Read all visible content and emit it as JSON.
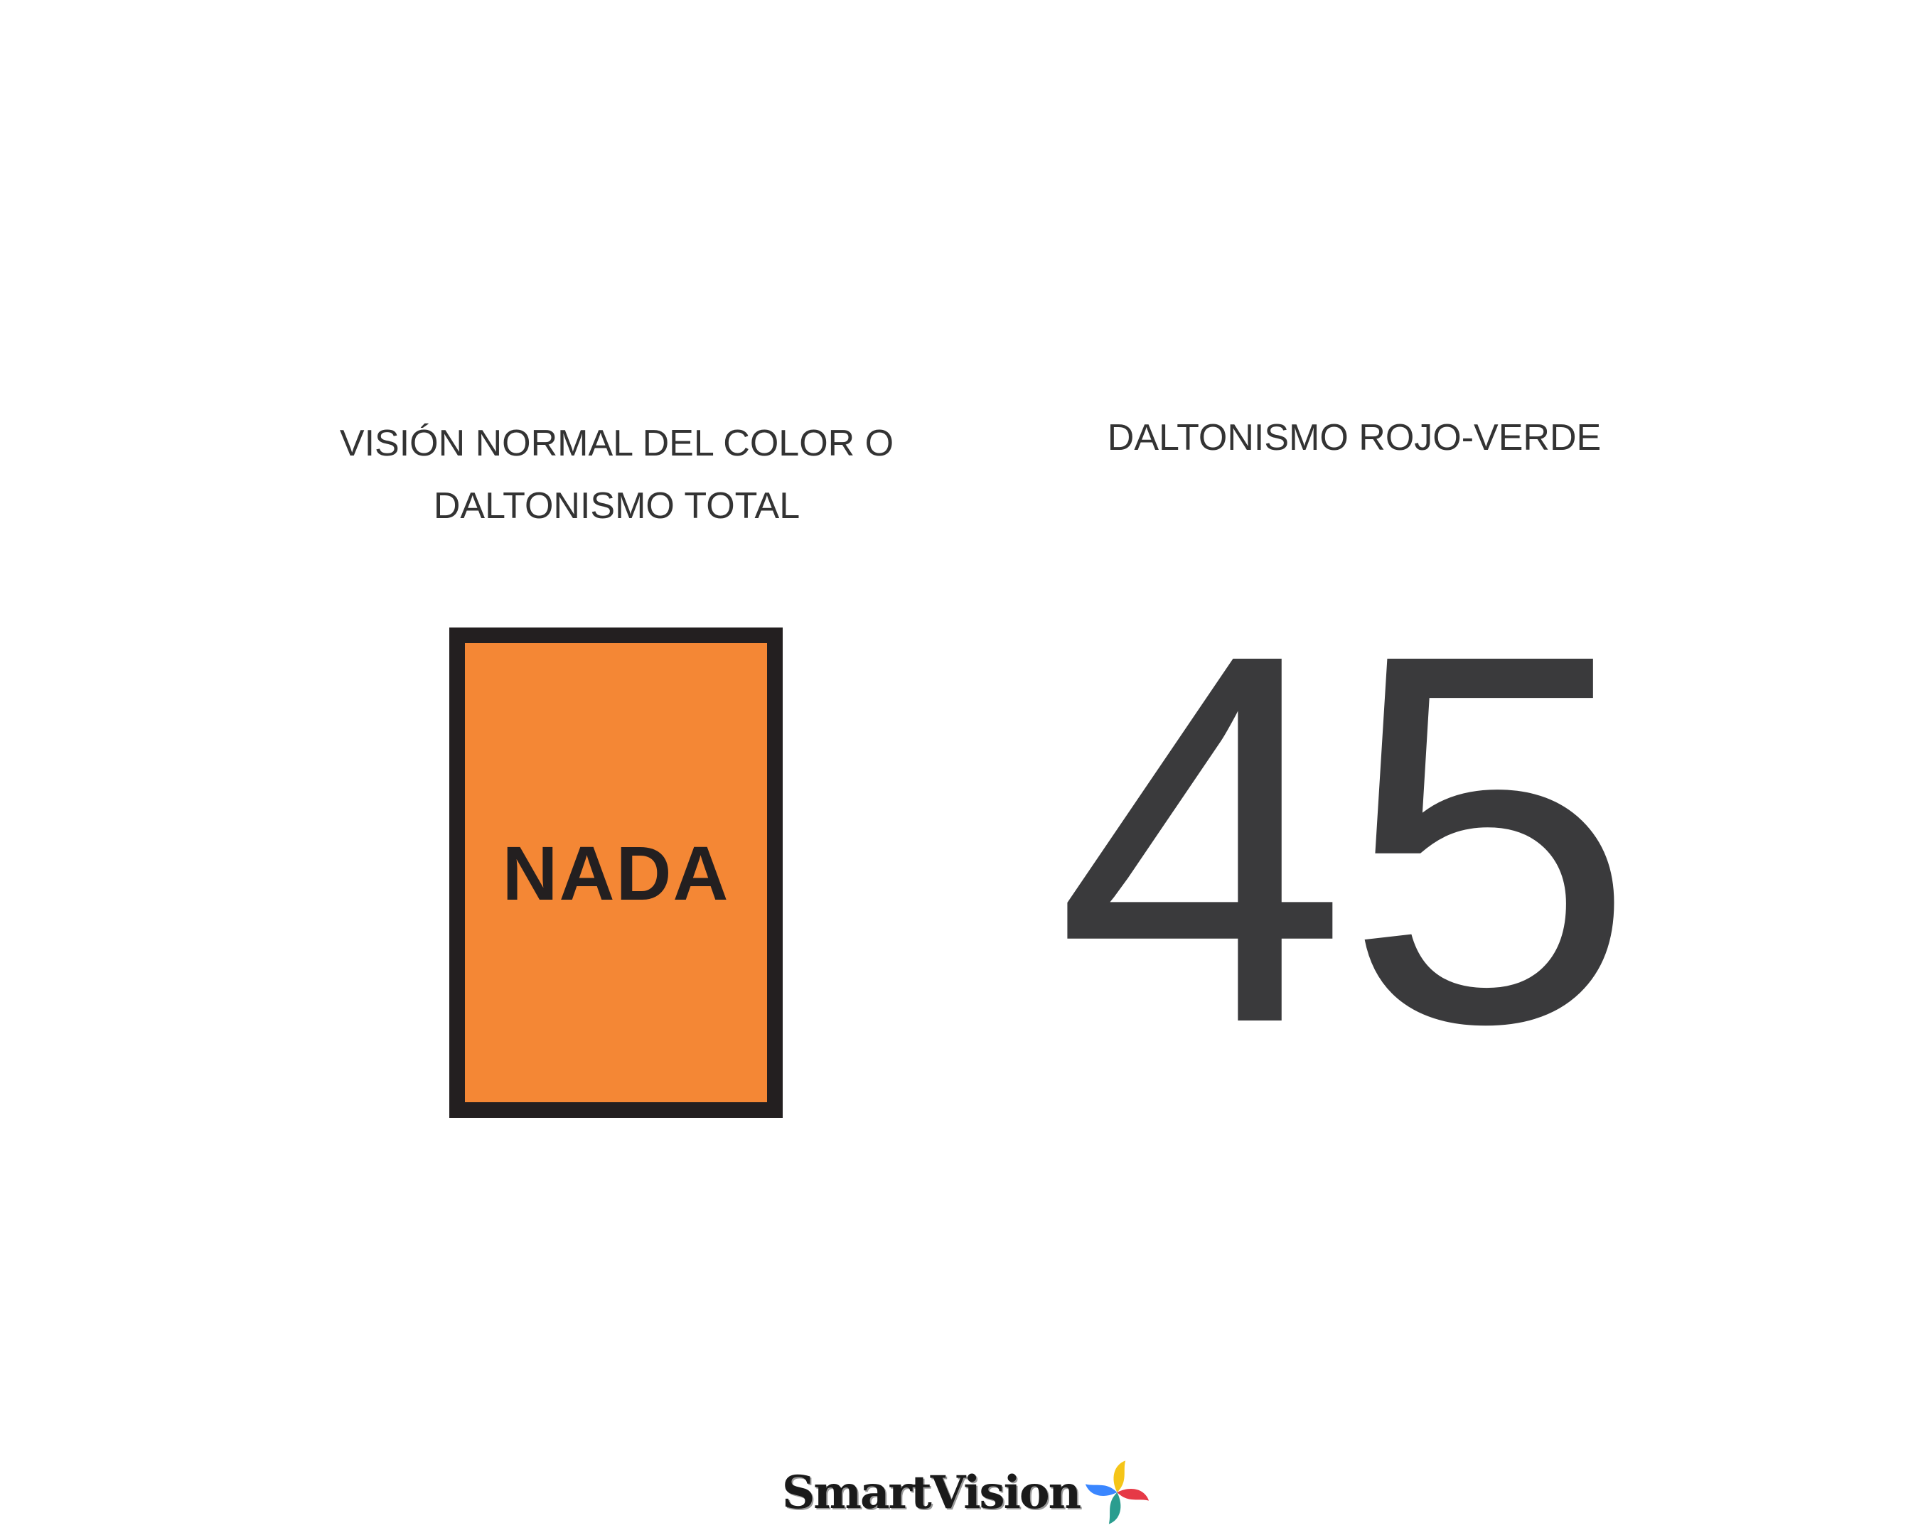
{
  "left_panel": {
    "heading_line1": "VISIÓN NORMAL DEL COLOR O",
    "heading_line2": "DALTONISMO TOTAL",
    "box_label": "NADA",
    "box_color": "#f48735",
    "border_color": "#231f20"
  },
  "right_panel": {
    "heading": "DALTONISMO ROJO-VERDE",
    "number": "45",
    "number_color": "#3a3a3c"
  },
  "logo": {
    "text": "SmartVision",
    "icon": "pinwheel-icon",
    "icon_colors": [
      "#f5c518",
      "#e63946",
      "#2a9d8f",
      "#3a86ff"
    ]
  }
}
